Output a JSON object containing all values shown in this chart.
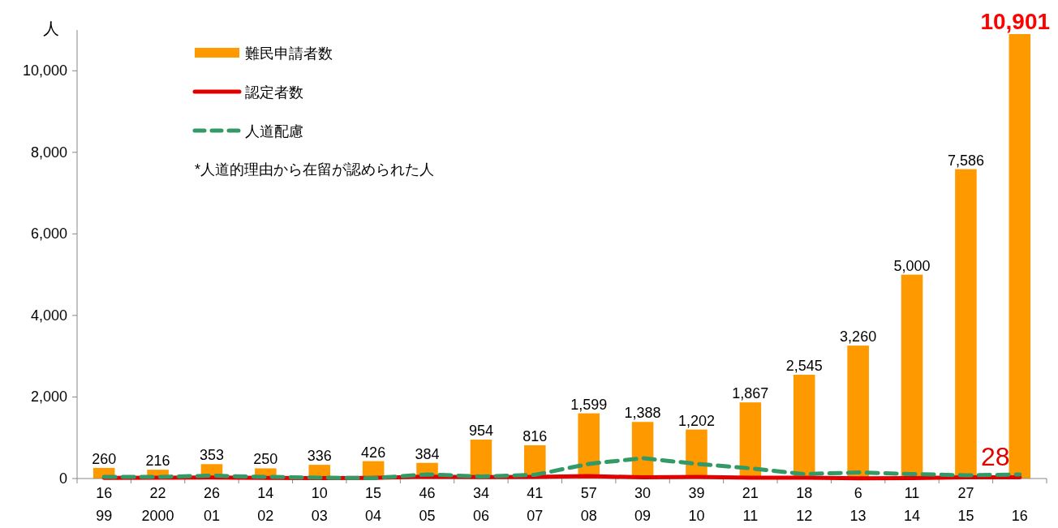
{
  "chart_data": {
    "type": "bar",
    "ylabel": "人",
    "categories": [
      "99",
      "2000",
      "01",
      "02",
      "03",
      "04",
      "05",
      "06",
      "07",
      "08",
      "09",
      "10",
      "11",
      "12",
      "13",
      "14",
      "15",
      "16"
    ],
    "series": [
      {
        "name": "難民申請者数",
        "color": "#ff9900",
        "values": [
          260,
          216,
          353,
          250,
          336,
          426,
          384,
          954,
          816,
          1599,
          1388,
          1202,
          1867,
          2545,
          3260,
          5000,
          7586,
          10901
        ],
        "value_labels": [
          "260",
          "216",
          "353",
          "250",
          "336",
          "426",
          "384",
          "954",
          "816",
          "1,599",
          "1,388",
          "1,202",
          "1,867",
          "2,545",
          "3,260",
          "5,000",
          "7,586",
          "10,901"
        ]
      },
      {
        "name": "認定者数",
        "type": "line",
        "color": "#e00000",
        "line_style": "solid",
        "values": [
          16,
          22,
          26,
          14,
          10,
          15,
          46,
          34,
          41,
          57,
          30,
          39,
          21,
          18,
          6,
          11,
          27,
          28
        ],
        "value_labels": [
          "16",
          "22",
          "26",
          "14",
          "10",
          "15",
          "46",
          "34",
          "41",
          "57",
          "30",
          "39",
          "21",
          "18",
          "6",
          "11",
          "27",
          "28"
        ]
      },
      {
        "name": "人道配慮",
        "type": "line",
        "color": "#339966",
        "line_style": "dashed",
        "values": [
          40,
          40,
          70,
          40,
          20,
          10,
          100,
          50,
          90,
          360,
          500,
          360,
          250,
          110,
          150,
          110,
          80,
          100
        ]
      }
    ],
    "ylim": [
      0,
      11000
    ],
    "yticks": [
      {
        "value": 0,
        "label": "0"
      },
      {
        "value": 2000,
        "label": "2,000"
      },
      {
        "value": 4000,
        "label": "4,000"
      },
      {
        "value": 6000,
        "label": "6,000"
      },
      {
        "value": 8000,
        "label": "8,000"
      },
      {
        "value": 10000,
        "label": "10,000"
      }
    ],
    "legend": "top left",
    "grid": false,
    "marker": "none",
    "annotations": [
      "*人道的理由から在留が認められた人"
    ]
  }
}
